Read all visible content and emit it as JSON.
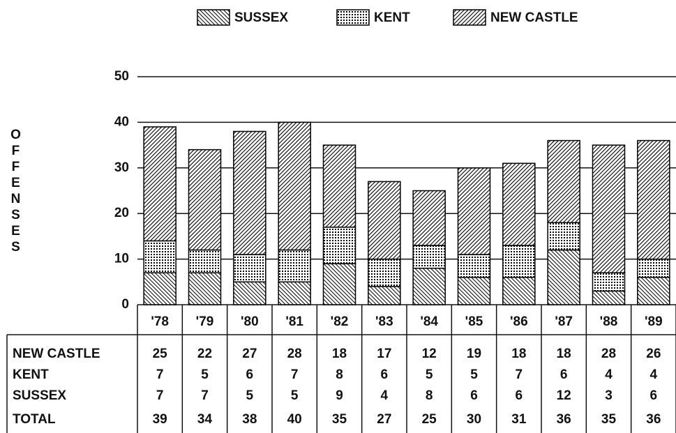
{
  "chart_data": {
    "type": "stacked_bar",
    "y_label": "OFFENSES",
    "categories": [
      "'78",
      "'79",
      "'80",
      "'81",
      "'82",
      "'83",
      "'84",
      "'85",
      "'86",
      "'87",
      "'88",
      "'89"
    ],
    "series": [
      {
        "name": "SUSSEX",
        "color": "#000000",
        "values": [
          7,
          7,
          5,
          5,
          9,
          4,
          8,
          6,
          6,
          12,
          3,
          6
        ]
      },
      {
        "name": "KENT",
        "color": "#000000",
        "values": [
          7,
          5,
          6,
          7,
          8,
          6,
          5,
          5,
          7,
          6,
          4,
          4
        ]
      },
      {
        "name": "NEW CASTLE",
        "color": "#000000",
        "values": [
          25,
          22,
          27,
          28,
          18,
          17,
          12,
          19,
          18,
          18,
          28,
          26
        ]
      }
    ],
    "totals": {
      "label": "TOTAL",
      "values": [
        39,
        34,
        38,
        40,
        35,
        27,
        25,
        30,
        31,
        36,
        35,
        36
      ]
    },
    "ylim": [
      0,
      50
    ],
    "yticks": [
      0,
      10,
      20,
      30,
      40,
      50
    ],
    "grid": true,
    "legend": "top"
  }
}
